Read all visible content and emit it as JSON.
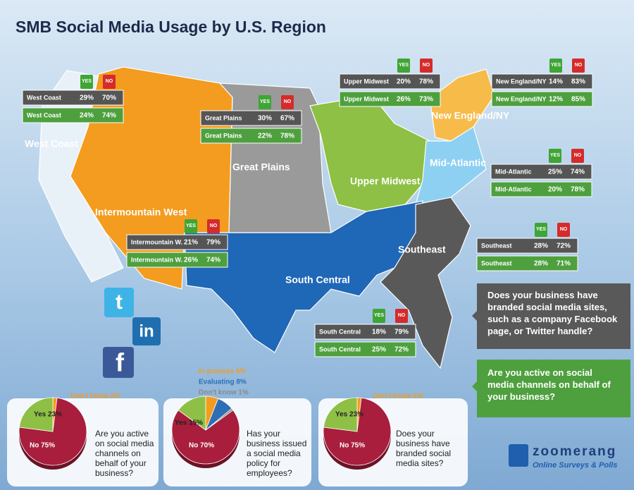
{
  "title": "SMB Social Media Usage by U.S. Region",
  "yes_label": "YES",
  "no_label": "NO",
  "regions": [
    {
      "map_label": "West Coast",
      "table_label": "West Coast",
      "branded": [
        "29%",
        "70%"
      ],
      "active": [
        "24%",
        "74%"
      ]
    },
    {
      "map_label": "Great Plains",
      "table_label": "Great Plains",
      "branded": [
        "30%",
        "67%"
      ],
      "active": [
        "22%",
        "78%"
      ]
    },
    {
      "map_label": "Upper Midwest",
      "table_label": "Upper Midwest",
      "branded": [
        "20%",
        "78%"
      ],
      "active": [
        "26%",
        "73%"
      ]
    },
    {
      "map_label": "New England/NY",
      "table_label": "New England/NY",
      "branded": [
        "14%",
        "83%"
      ],
      "active": [
        "12%",
        "85%"
      ]
    },
    {
      "map_label": "Mid-Atlantic",
      "table_label": "Mid-Atlantic",
      "branded": [
        "25%",
        "74%"
      ],
      "active": [
        "20%",
        "78%"
      ]
    },
    {
      "map_label": "Intermountain West",
      "table_label": "Intermountain W.",
      "branded": [
        "21%",
        "79%"
      ],
      "active": [
        "26%",
        "74%"
      ]
    },
    {
      "map_label": "Southeast",
      "table_label": "Southeast",
      "branded": [
        "28%",
        "72%"
      ],
      "active": [
        "28%",
        "71%"
      ]
    },
    {
      "map_label": "South Central",
      "table_label": "South Central",
      "branded": [
        "18%",
        "79%"
      ],
      "active": [
        "25%",
        "72%"
      ]
    }
  ],
  "legend": {
    "branded": "Does your business have branded social media sites, such as a company Facebook page, or Twitter handle?",
    "active": "Are you active on social media channels on behalf of your business?"
  },
  "social_icons": [
    "t",
    "in",
    "f"
  ],
  "logo": {
    "name": "zoomerang",
    "tagline": "Online Surveys & Polls"
  },
  "chart_data": [
    {
      "type": "pie",
      "title": "Are you active on social media channels on behalf of your business?",
      "values": [
        2,
        75,
        23
      ],
      "value_labels": [
        "Don't know 2%",
        "No 75%",
        "Yes 23%"
      ],
      "colors": [
        "#f39c1f",
        "#a81e3c",
        "#8dc044"
      ]
    },
    {
      "type": "pie",
      "title": "Has your business issued a social media policy for employees?",
      "values": [
        6,
        8,
        1,
        70,
        15
      ],
      "value_labels": [
        "In process 6%",
        "Evaluating 8%",
        "Don't know 1%",
        "No 70%",
        "Yes 15%"
      ],
      "colors": [
        "#f39c1f",
        "#2d6fb5",
        "#8a8a8a",
        "#a81e3c",
        "#8dc044"
      ]
    },
    {
      "type": "pie",
      "title": "Does your business have branded social media sites?",
      "values": [
        2,
        75,
        23
      ],
      "value_labels": [
        "Don't know 2%",
        "No 75%",
        "Yes 23%"
      ],
      "colors": [
        "#f39c1f",
        "#a81e3c",
        "#8dc044"
      ]
    }
  ]
}
